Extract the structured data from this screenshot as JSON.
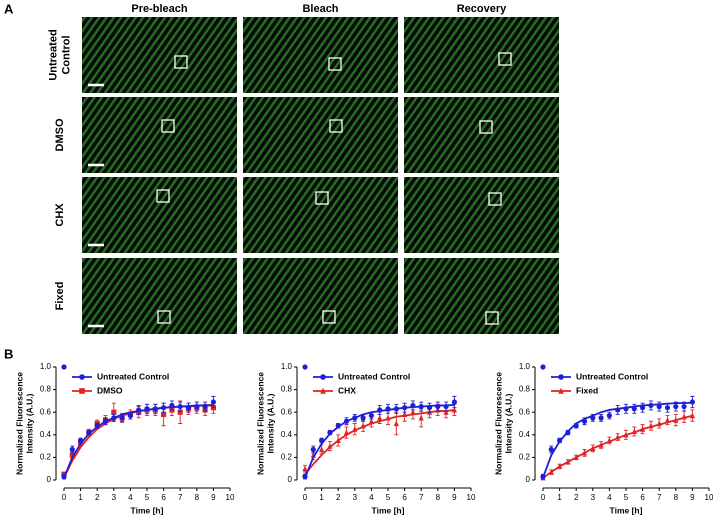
{
  "panel_a": {
    "label": "A",
    "columns": [
      "Pre-bleach",
      "Bleach",
      "Recovery"
    ],
    "rows": [
      [
        "Untreated",
        "Control"
      ],
      [
        "DMSO"
      ],
      [
        "CHX"
      ],
      [
        "Fixed"
      ]
    ]
  },
  "panel_b": {
    "label": "B"
  },
  "chart_data": [
    {
      "type": "line",
      "xlabel": "Time [h]",
      "ylabel": [
        "Normalized Fluorescence",
        "Intensity (A.U.)"
      ],
      "xlim": [
        0,
        10
      ],
      "ylim": [
        0,
        1
      ],
      "xticks": [
        0,
        1,
        2,
        3,
        4,
        5,
        6,
        7,
        8,
        9,
        10
      ],
      "yticks": [
        0,
        0.2,
        0.4,
        0.6,
        0.8,
        {
          "value": 1,
          "label": "1.0"
        }
      ],
      "x": [
        0,
        0.5,
        1,
        1.5,
        2,
        2.5,
        3,
        3.5,
        4,
        4.5,
        5,
        5.5,
        6,
        6.5,
        7,
        7.5,
        8,
        8.5,
        9
      ],
      "series": [
        {
          "name": "Untreated Control",
          "color": "#1f1fd6",
          "marker": "circle",
          "prebleach": 1,
          "values": [
            0.03,
            0.27,
            0.35,
            0.42,
            0.48,
            0.52,
            0.55,
            0.55,
            0.57,
            0.62,
            0.63,
            0.63,
            0.64,
            0.66,
            0.65,
            0.64,
            0.65,
            0.65,
            0.69
          ],
          "errors": [
            0.02,
            0.03,
            0.02,
            0.02,
            0.02,
            0.03,
            0.03,
            0.03,
            0.03,
            0.04,
            0.04,
            0.04,
            0.04,
            0.04,
            0.04,
            0.04,
            0.04,
            0.04,
            0.05
          ],
          "fit": [
            0.02,
            0.2,
            0.32,
            0.41,
            0.47,
            0.52,
            0.55,
            0.58,
            0.6,
            0.61,
            0.62,
            0.63,
            0.64,
            0.645,
            0.65,
            0.655,
            0.66,
            0.66,
            0.665
          ]
        },
        {
          "name": "DMSO",
          "color": "#e02424",
          "marker": "square",
          "values": [
            0.05,
            0.22,
            0.33,
            0.42,
            0.5,
            0.53,
            0.6,
            0.55,
            0.58,
            0.6,
            0.62,
            0.62,
            0.58,
            0.62,
            0.6,
            0.63,
            0.64,
            0.62,
            0.64
          ],
          "errors": [
            0.02,
            0.03,
            0.03,
            0.03,
            0.03,
            0.04,
            0.08,
            0.04,
            0.04,
            0.05,
            0.05,
            0.05,
            0.1,
            0.05,
            0.1,
            0.05,
            0.05,
            0.05,
            0.05
          ],
          "fit": [
            0.02,
            0.17,
            0.29,
            0.38,
            0.45,
            0.5,
            0.54,
            0.57,
            0.59,
            0.61,
            0.62,
            0.63,
            0.64,
            0.645,
            0.65,
            0.65,
            0.655,
            0.66,
            0.66
          ]
        }
      ]
    },
    {
      "type": "line",
      "xlabel": "Time [h]",
      "ylabel": [
        "Normalized Fluorescence",
        "Intensity (A.U.)"
      ],
      "xlim": [
        0,
        10
      ],
      "ylim": [
        0,
        1
      ],
      "xticks": [
        0,
        1,
        2,
        3,
        4,
        5,
        6,
        7,
        8,
        9,
        10
      ],
      "yticks": [
        0,
        0.2,
        0.4,
        0.6,
        0.8,
        {
          "value": 1,
          "label": "1.0"
        }
      ],
      "x": [
        0,
        0.5,
        1,
        1.5,
        2,
        2.5,
        3,
        3.5,
        4,
        4.5,
        5,
        5.5,
        6,
        6.5,
        7,
        7.5,
        8,
        8.5,
        9
      ],
      "series": [
        {
          "name": "Untreated Control",
          "color": "#1f1fd6",
          "marker": "circle",
          "prebleach": 1,
          "values": [
            0.03,
            0.27,
            0.35,
            0.42,
            0.48,
            0.52,
            0.55,
            0.55,
            0.57,
            0.62,
            0.63,
            0.63,
            0.64,
            0.66,
            0.65,
            0.64,
            0.65,
            0.65,
            0.69
          ],
          "errors": [
            0.02,
            0.03,
            0.02,
            0.02,
            0.02,
            0.03,
            0.03,
            0.03,
            0.03,
            0.04,
            0.04,
            0.04,
            0.04,
            0.04,
            0.04,
            0.04,
            0.04,
            0.04,
            0.05
          ],
          "fit": [
            0.02,
            0.2,
            0.32,
            0.41,
            0.47,
            0.52,
            0.55,
            0.58,
            0.6,
            0.61,
            0.62,
            0.63,
            0.64,
            0.645,
            0.65,
            0.655,
            0.66,
            0.66,
            0.665
          ]
        },
        {
          "name": "CHX",
          "color": "#e02424",
          "marker": "triangle",
          "values": [
            0.1,
            0.22,
            0.27,
            0.3,
            0.35,
            0.42,
            0.45,
            0.48,
            0.52,
            0.55,
            0.55,
            0.5,
            0.58,
            0.6,
            0.55,
            0.6,
            0.62,
            0.6,
            0.62
          ],
          "errors": [
            0.03,
            0.04,
            0.04,
            0.04,
            0.05,
            0.05,
            0.05,
            0.05,
            0.05,
            0.05,
            0.06,
            0.1,
            0.06,
            0.06,
            0.08,
            0.05,
            0.05,
            0.05,
            0.05
          ],
          "fit": [
            0.05,
            0.14,
            0.22,
            0.29,
            0.35,
            0.4,
            0.44,
            0.47,
            0.5,
            0.52,
            0.54,
            0.56,
            0.57,
            0.58,
            0.59,
            0.6,
            0.61,
            0.61,
            0.62
          ]
        }
      ]
    },
    {
      "type": "line",
      "xlabel": "Time [h]",
      "ylabel": [
        "Normalized Fluorescence",
        "Intensity (A.U.)"
      ],
      "xlim": [
        0,
        10
      ],
      "ylim": [
        0,
        1
      ],
      "xticks": [
        0,
        1,
        2,
        3,
        4,
        5,
        6,
        7,
        8,
        9,
        10
      ],
      "yticks": [
        0,
        0.2,
        0.4,
        0.6,
        0.8,
        {
          "value": 1,
          "label": "1.0"
        }
      ],
      "x": [
        0,
        0.5,
        1,
        1.5,
        2,
        2.5,
        3,
        3.5,
        4,
        4.5,
        5,
        5.5,
        6,
        6.5,
        7,
        7.5,
        8,
        8.5,
        9
      ],
      "series": [
        {
          "name": "Untreated Control",
          "color": "#1f1fd6",
          "marker": "circle",
          "prebleach": 1,
          "values": [
            0.03,
            0.27,
            0.35,
            0.42,
            0.48,
            0.52,
            0.55,
            0.55,
            0.57,
            0.62,
            0.63,
            0.63,
            0.64,
            0.66,
            0.65,
            0.64,
            0.65,
            0.65,
            0.69
          ],
          "errors": [
            0.02,
            0.03,
            0.02,
            0.02,
            0.02,
            0.03,
            0.03,
            0.03,
            0.03,
            0.04,
            0.04,
            0.04,
            0.04,
            0.04,
            0.04,
            0.04,
            0.04,
            0.04,
            0.05
          ],
          "fit": [
            0.02,
            0.22,
            0.34,
            0.43,
            0.5,
            0.54,
            0.57,
            0.6,
            0.62,
            0.63,
            0.64,
            0.65,
            0.66,
            0.665,
            0.67,
            0.675,
            0.68,
            0.68,
            0.685
          ]
        },
        {
          "name": "Fixed",
          "color": "#e02424",
          "marker": "triangle",
          "values": [
            0.02,
            0.07,
            0.12,
            0.16,
            0.2,
            0.24,
            0.28,
            0.31,
            0.35,
            0.38,
            0.4,
            0.43,
            0.45,
            0.48,
            0.5,
            0.53,
            0.53,
            0.56,
            0.57
          ],
          "errors": [
            0.01,
            0.02,
            0.02,
            0.02,
            0.02,
            0.03,
            0.03,
            0.03,
            0.03,
            0.03,
            0.04,
            0.04,
            0.04,
            0.04,
            0.04,
            0.04,
            0.05,
            0.05,
            0.05
          ],
          "fit": [
            0.02,
            0.07,
            0.12,
            0.16,
            0.2,
            0.24,
            0.28,
            0.31,
            0.34,
            0.37,
            0.4,
            0.42,
            0.45,
            0.47,
            0.49,
            0.51,
            0.53,
            0.55,
            0.57
          ]
        }
      ]
    }
  ]
}
